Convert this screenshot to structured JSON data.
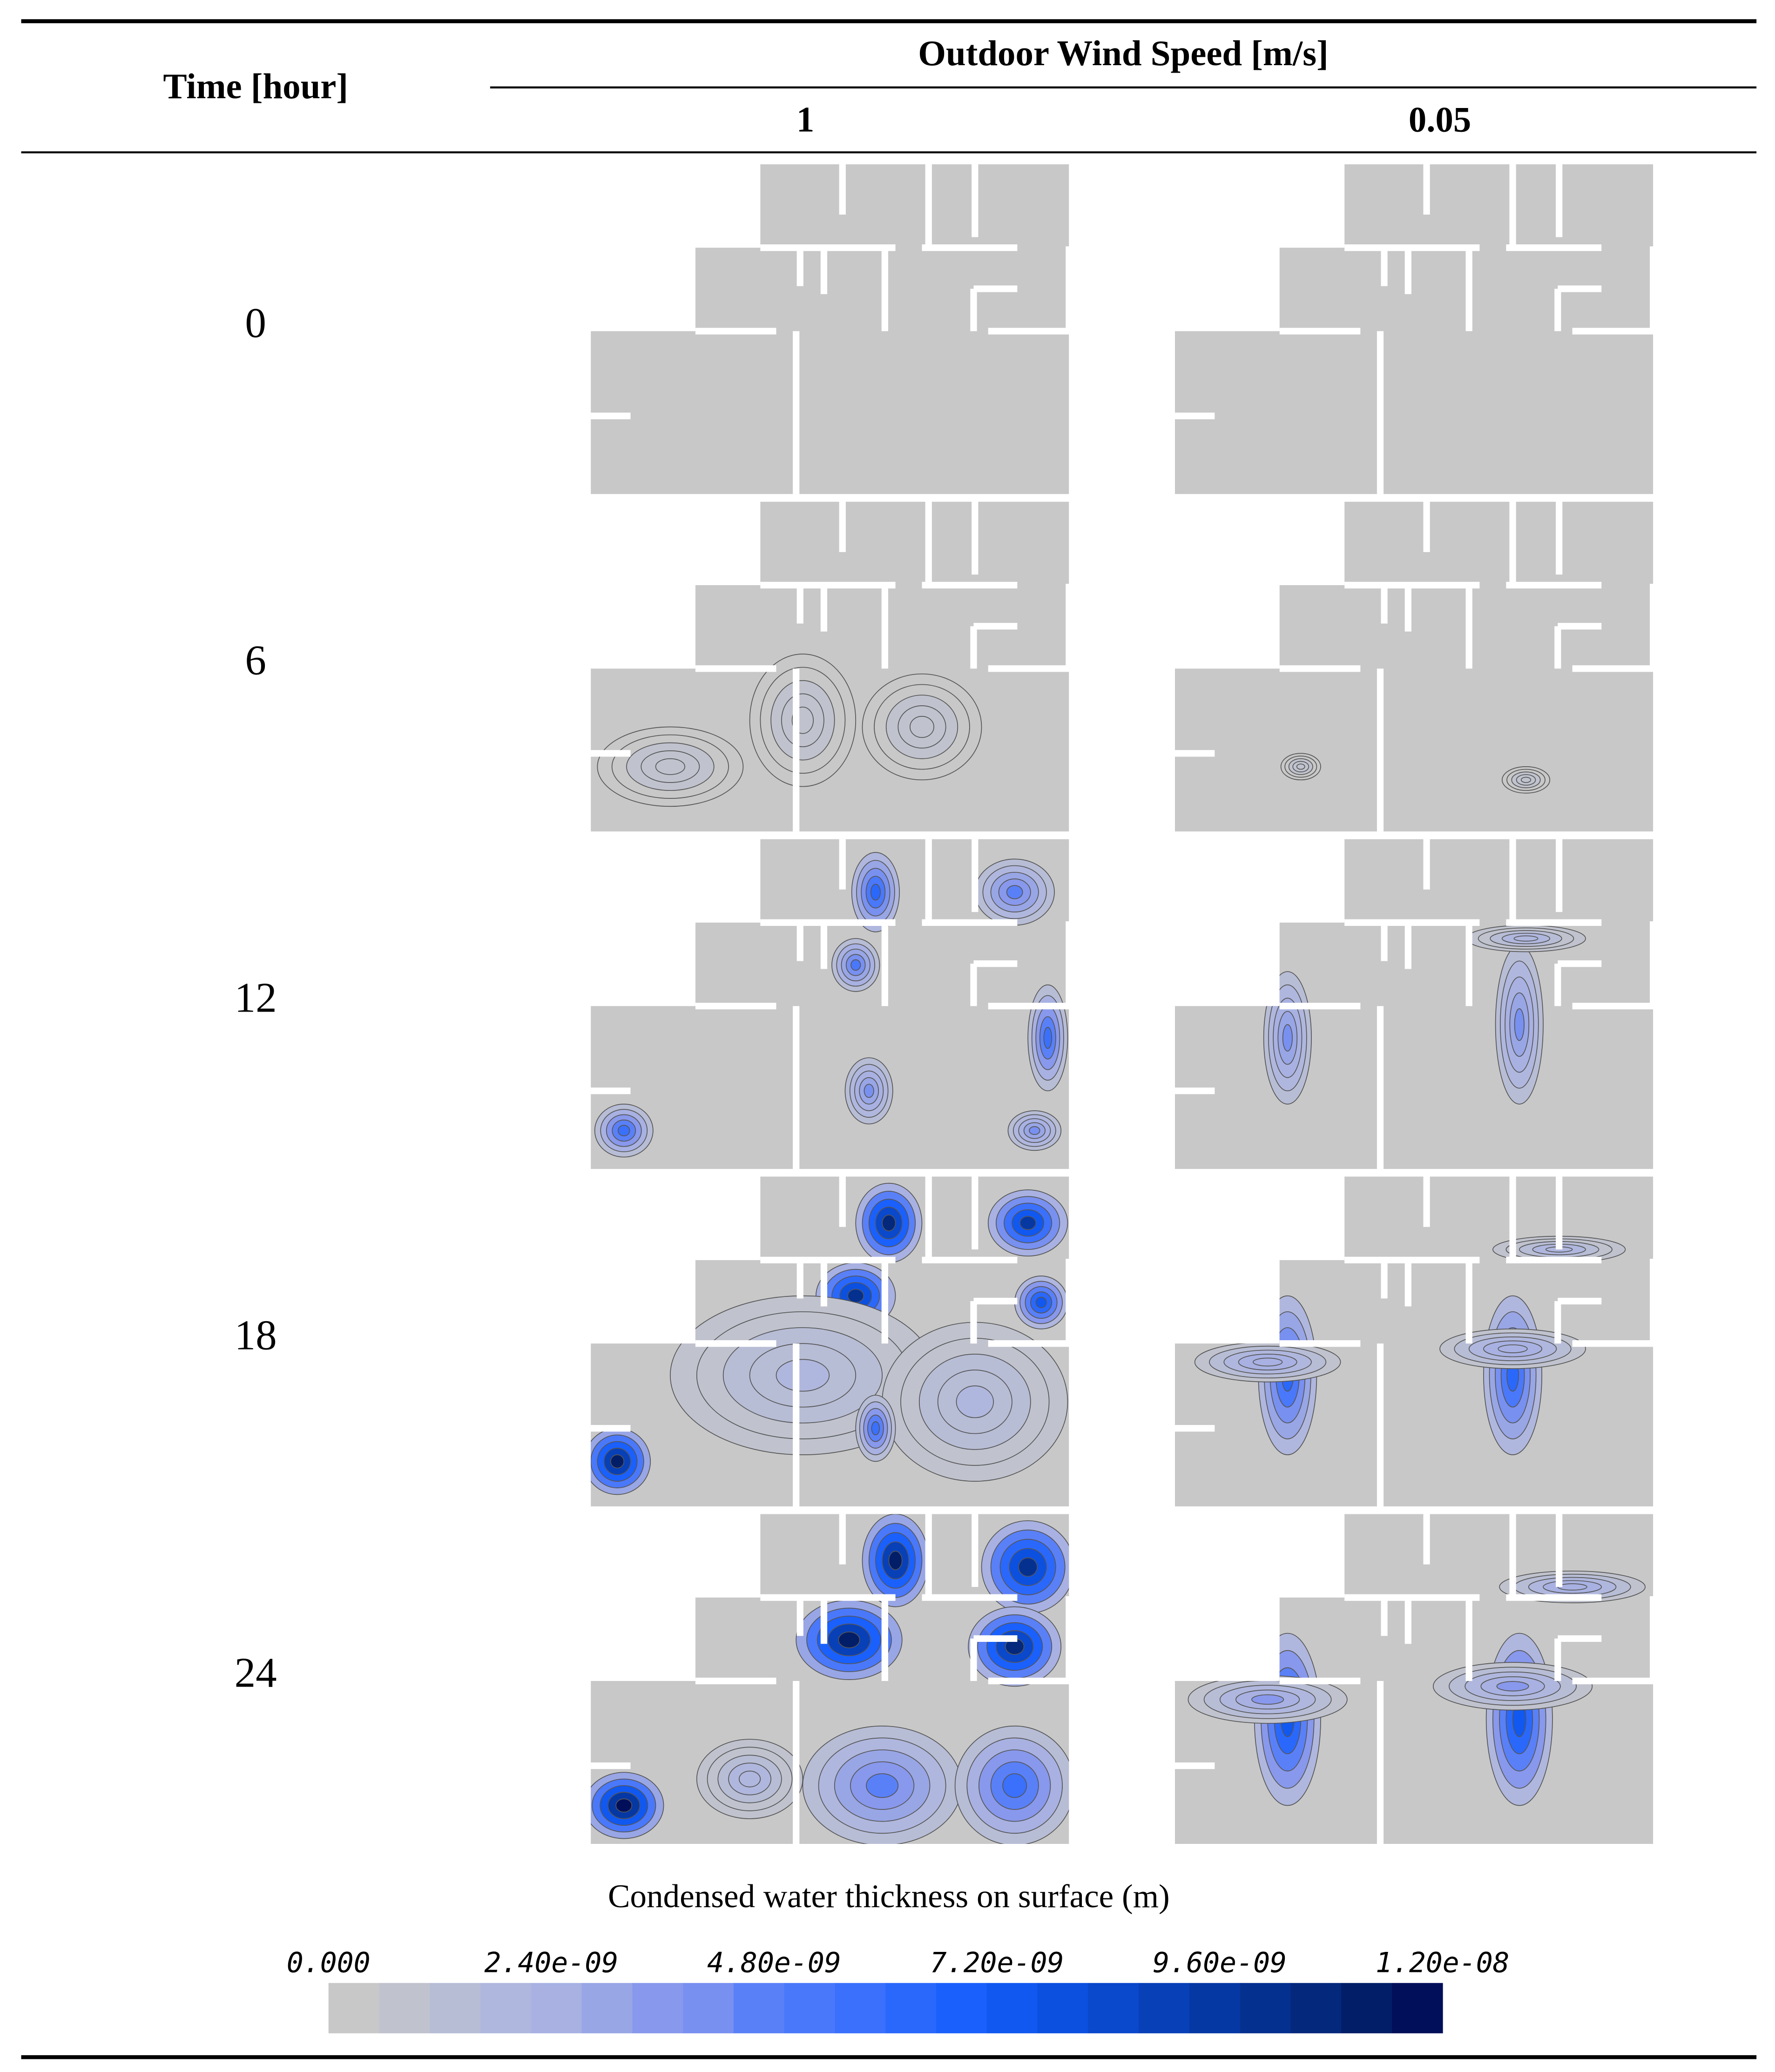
{
  "table": {
    "header": {
      "row_label": "Time [hour]",
      "group": "Outdoor Wind Speed [m/s]",
      "columns": [
        "1",
        "0.05"
      ]
    },
    "rows": [
      "0",
      "6",
      "12",
      "18",
      "24"
    ]
  },
  "legend": {
    "title": "Condensed water thickness on surface (m)",
    "ticks": [
      "0.000",
      "2.40e-09",
      "4.80e-09",
      "7.20e-09",
      "9.60e-09",
      "1.20e-08"
    ],
    "colors": [
      "#c8c8c8",
      "#c0c3ce",
      "#b8bdd6",
      "#b0b7de",
      "#a8b1e2",
      "#98a6e6",
      "#8898ec",
      "#7890f0",
      "#5a80f8",
      "#4a78fa",
      "#3a70fc",
      "#2a68fc",
      "#1a60fc",
      "#1058f0",
      "#0c50e0",
      "#0a48cc",
      "#0840b8",
      "#0638a4",
      "#043090",
      "#03287c",
      "#021e68",
      "#010f5a"
    ]
  }
}
